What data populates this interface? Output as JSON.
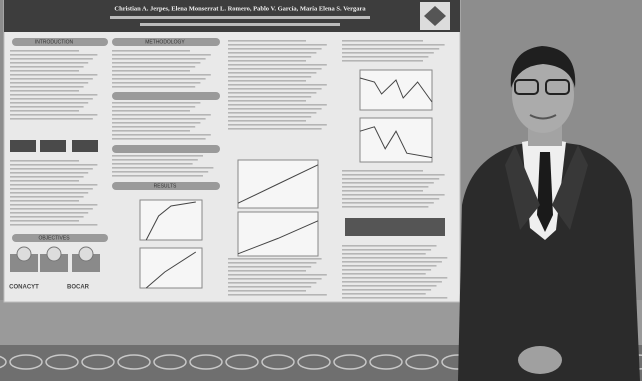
{
  "poster": {
    "authors": "Christian A. Jerpes, Elena Monserrat L. Romero, Pablo V. García, María Elena S. Vergara",
    "sections": [
      "INTRODUCTION",
      "METHODOLOGY",
      "OBJECTIVES",
      "RESULTS"
    ],
    "logos": [
      "CONACYT",
      "BOCAR"
    ]
  }
}
